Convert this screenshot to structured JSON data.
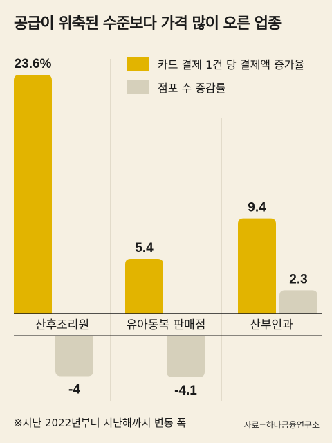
{
  "title": "공급이 위축된 수준보다 가격 많이 오른 업종",
  "footnote": "※지난 2022년부터 지난해까지 변동 폭",
  "source": "자료=하나금융연구소",
  "colors": {
    "primary": "#e2b400",
    "secondary": "#d6d0bb",
    "background": "#f6f0e2",
    "axis": "#1a1a1a"
  },
  "chart_data": {
    "type": "bar",
    "categories": [
      "산후조리원",
      "유아동복 판매점",
      "산부인과"
    ],
    "series": [
      {
        "name": "카드 결제 1건 당 결제액 증가율",
        "values": [
          23.6,
          5.4,
          9.4
        ],
        "labels": [
          "23.6%",
          "5.4",
          "9.4"
        ]
      },
      {
        "name": "점포 수 증감률",
        "values": [
          -4,
          -4.1,
          2.3
        ],
        "labels": [
          "-4",
          "-4.1",
          "2.3"
        ]
      }
    ],
    "xlabel": "",
    "ylabel": "",
    "ylim": [
      -5.8,
      26.1
    ],
    "legend": "top-right",
    "grid": false
  }
}
